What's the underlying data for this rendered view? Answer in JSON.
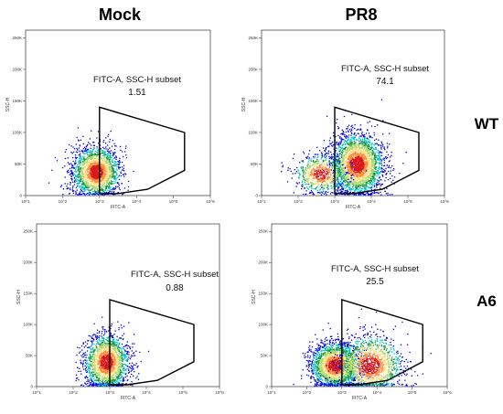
{
  "column_titles": [
    "Mock",
    "PR8"
  ],
  "row_labels": [
    "WT",
    "A6"
  ],
  "chart_data": [
    {
      "type": "scatter",
      "condition": "Mock",
      "genotype": "WT",
      "xlabel": "FITC-A",
      "ylabel": "SSC-H",
      "x_scale": "log",
      "xlim": [
        10,
        1000000
      ],
      "ylim": [
        0,
        262144
      ],
      "x_ticks": [
        "10^1",
        "10^2",
        "10^3",
        "10^4",
        "10^5",
        "10^6"
      ],
      "y_ticks": [
        "0",
        "50K",
        "100K",
        "150K",
        "200K",
        "250K"
      ],
      "gate_label": "FITC-A, SSC-H subset",
      "gate_percent": "1.51",
      "gate_polygon": [
        [
          1000,
          140000
        ],
        [
          200000,
          100000
        ],
        [
          200000,
          40000
        ],
        [
          20000,
          10000
        ],
        [
          3000,
          3000
        ],
        [
          1000,
          3000
        ]
      ],
      "populations": [
        {
          "x_center_log": 2.9,
          "y_center": 38000,
          "x_spread_log": 0.32,
          "y_spread": 20000,
          "count": 2000
        }
      ]
    },
    {
      "type": "scatter",
      "condition": "PR8",
      "genotype": "WT",
      "xlabel": "FITC-A",
      "ylabel": "SSC-H",
      "x_scale": "log",
      "xlim": [
        10,
        1000000
      ],
      "ylim": [
        0,
        262144
      ],
      "x_ticks": [
        "10^1",
        "10^2",
        "10^3",
        "10^4",
        "10^5",
        "10^6"
      ],
      "y_ticks": [
        "0",
        "50K",
        "100K",
        "150K",
        "200K",
        "250K"
      ],
      "gate_label": "FITC-A, SSC-H subset",
      "gate_percent": "74.1",
      "gate_polygon": [
        [
          1000,
          140000
        ],
        [
          200000,
          100000
        ],
        [
          200000,
          40000
        ],
        [
          20000,
          10000
        ],
        [
          3000,
          3000
        ],
        [
          1000,
          3000
        ]
      ],
      "populations": [
        {
          "x_center_log": 3.6,
          "y_center": 50000,
          "x_spread_log": 0.35,
          "y_spread": 24000,
          "count": 2600
        },
        {
          "x_center_log": 2.6,
          "y_center": 35000,
          "x_spread_log": 0.35,
          "y_spread": 15000,
          "count": 700
        }
      ]
    },
    {
      "type": "scatter",
      "condition": "Mock",
      "genotype": "A6",
      "xlabel": "FITC-A",
      "ylabel": "SSC-H",
      "x_scale": "log",
      "xlim": [
        10,
        1000000
      ],
      "ylim": [
        0,
        262144
      ],
      "x_ticks": [
        "10^1",
        "10^2",
        "10^3",
        "10^4",
        "10^5",
        "10^6"
      ],
      "y_ticks": [
        "0",
        "50K",
        "100K",
        "150K",
        "200K",
        "250K"
      ],
      "gate_label": "FITC-A, SSC-H subset",
      "gate_percent": "0.88",
      "gate_polygon": [
        [
          1000,
          140000
        ],
        [
          200000,
          100000
        ],
        [
          200000,
          40000
        ],
        [
          20000,
          10000
        ],
        [
          3000,
          3000
        ],
        [
          1000,
          3000
        ]
      ],
      "populations": [
        {
          "x_center_log": 2.9,
          "y_center": 40000,
          "x_spread_log": 0.3,
          "y_spread": 22000,
          "count": 2000
        }
      ]
    },
    {
      "type": "scatter",
      "condition": "PR8",
      "genotype": "A6",
      "xlabel": "FITC-A",
      "ylabel": "SSC-H",
      "x_scale": "log",
      "xlim": [
        10,
        1000000
      ],
      "ylim": [
        0,
        262144
      ],
      "x_ticks": [
        "10^1",
        "10^2",
        "10^3",
        "10^4",
        "10^5",
        "10^6"
      ],
      "y_ticks": [
        "0",
        "50K",
        "100K",
        "150K",
        "200K",
        "250K"
      ],
      "gate_label": "FITC-A, SSC-H subset",
      "gate_percent": "25.5",
      "gate_polygon": [
        [
          1000,
          140000
        ],
        [
          200000,
          100000
        ],
        [
          200000,
          40000
        ],
        [
          20000,
          10000
        ],
        [
          3000,
          3000
        ],
        [
          1000,
          3000
        ]
      ],
      "populations": [
        {
          "x_center_log": 2.8,
          "y_center": 35000,
          "x_spread_log": 0.35,
          "y_spread": 18000,
          "count": 2200
        },
        {
          "x_center_log": 3.8,
          "y_center": 35000,
          "x_spread_log": 0.45,
          "y_spread": 24000,
          "count": 1400
        }
      ]
    }
  ]
}
